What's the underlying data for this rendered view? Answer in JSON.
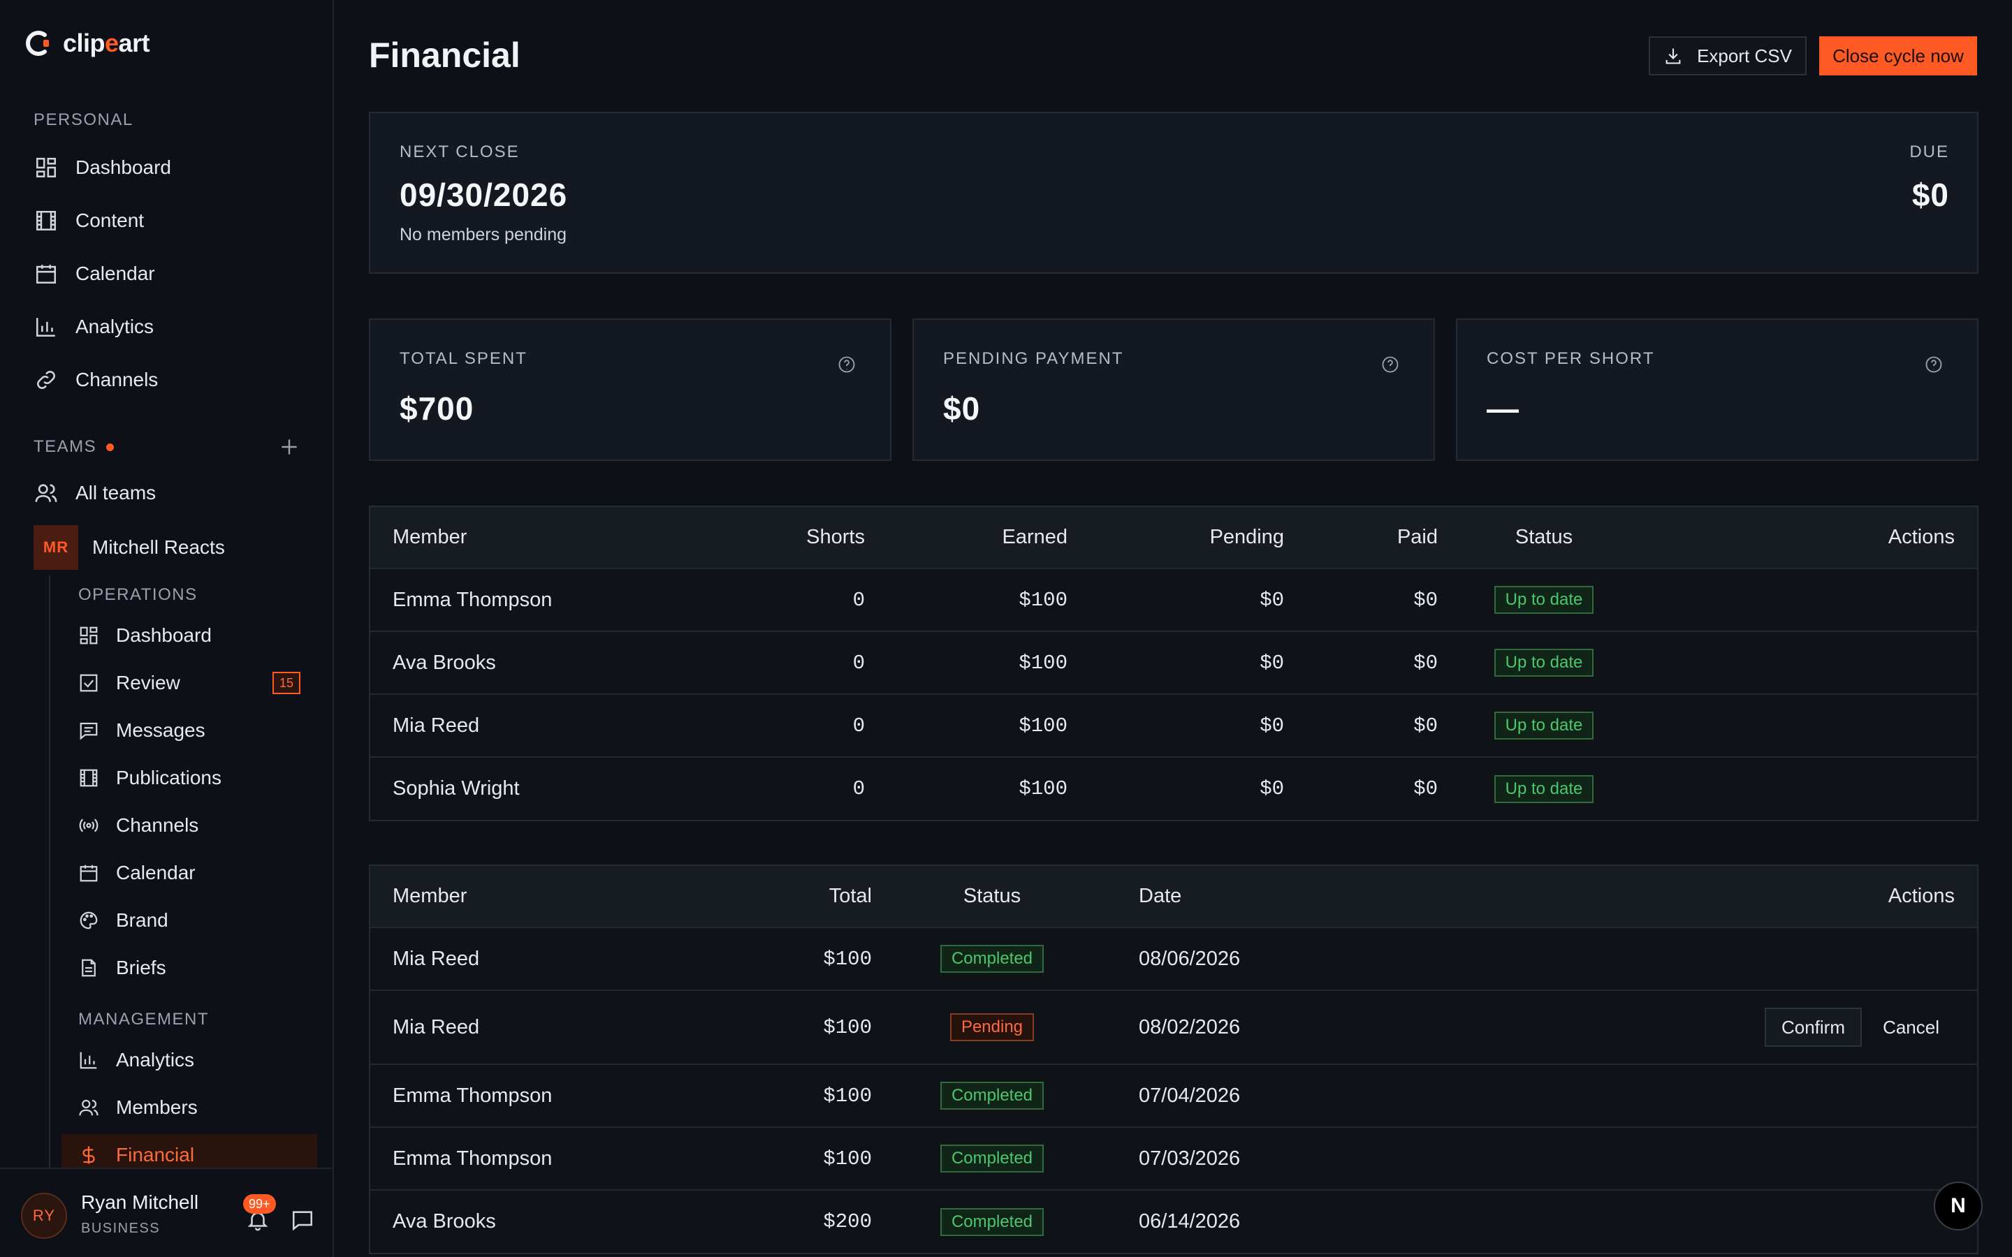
{
  "app": {
    "logo_text_a": "clip",
    "logo_text_b": "e",
    "logo_text_c": "art",
    "brand_color": "#ff5a24"
  },
  "sidebar": {
    "personal_label": "PERSONAL",
    "personal_items": [
      {
        "label": "Dashboard",
        "icon": "dashboard-icon"
      },
      {
        "label": "Content",
        "icon": "film-icon"
      },
      {
        "label": "Calendar",
        "icon": "calendar-icon"
      },
      {
        "label": "Analytics",
        "icon": "bar-chart-icon"
      },
      {
        "label": "Channels",
        "icon": "link-icon"
      }
    ],
    "teams_label": "TEAMS",
    "all_teams": "All teams",
    "team": {
      "initials": "MR",
      "name": "Mitchell Reacts"
    },
    "operations_label": "OPERATIONS",
    "operations_items": [
      {
        "label": "Dashboard",
        "icon": "dashboard-icon"
      },
      {
        "label": "Review",
        "icon": "checkbox-icon",
        "badge": "15"
      },
      {
        "label": "Messages",
        "icon": "message-icon"
      },
      {
        "label": "Publications",
        "icon": "film-icon"
      },
      {
        "label": "Channels",
        "icon": "broadcast-icon"
      },
      {
        "label": "Calendar",
        "icon": "calendar-icon"
      },
      {
        "label": "Brand",
        "icon": "palette-icon"
      },
      {
        "label": "Briefs",
        "icon": "document-icon"
      }
    ],
    "management_label": "MANAGEMENT",
    "management_items": [
      {
        "label": "Analytics",
        "icon": "bar-chart-icon"
      },
      {
        "label": "Members",
        "icon": "users-icon"
      },
      {
        "label": "Financial",
        "icon": "dollar-icon",
        "active": true
      }
    ],
    "user": {
      "initials": "RY",
      "name": "Ryan Mitchell",
      "plan": "BUSINESS",
      "notifications": "99+"
    }
  },
  "header": {
    "title": "Financial",
    "export_label": "Export CSV",
    "close_cycle_label": "Close cycle now"
  },
  "next_close": {
    "label": "NEXT CLOSE",
    "date": "09/30/2026",
    "sub": "No members pending",
    "due_label": "DUE",
    "due_value": "$0"
  },
  "stats": [
    {
      "label": "TOTAL SPENT",
      "value": "$700"
    },
    {
      "label": "PENDING PAYMENT",
      "value": "$0"
    },
    {
      "label": "COST PER SHORT",
      "value": "—"
    }
  ],
  "members_table": {
    "headers": [
      "Member",
      "Shorts",
      "Earned",
      "Pending",
      "Paid",
      "Status",
      "Actions"
    ],
    "rows": [
      {
        "member": "Emma Thompson",
        "shorts": "0",
        "earned": "$100",
        "pending": "$0",
        "paid": "$0",
        "status": "Up to date"
      },
      {
        "member": "Ava Brooks",
        "shorts": "0",
        "earned": "$100",
        "pending": "$0",
        "paid": "$0",
        "status": "Up to date"
      },
      {
        "member": "Mia Reed",
        "shorts": "0",
        "earned": "$100",
        "pending": "$0",
        "paid": "$0",
        "status": "Up to date"
      },
      {
        "member": "Sophia Wright",
        "shorts": "0",
        "earned": "$100",
        "pending": "$0",
        "paid": "$0",
        "status": "Up to date"
      }
    ]
  },
  "payments_table": {
    "headers": [
      "Member",
      "Total",
      "Status",
      "Date",
      "Actions"
    ],
    "rows": [
      {
        "member": "Mia Reed",
        "total": "$100",
        "status": "Completed",
        "date": "08/06/2026"
      },
      {
        "member": "Mia Reed",
        "total": "$100",
        "status": "Pending",
        "date": "08/02/2026",
        "confirm": "Confirm",
        "cancel": "Cancel"
      },
      {
        "member": "Emma Thompson",
        "total": "$100",
        "status": "Completed",
        "date": "07/04/2026"
      },
      {
        "member": "Emma Thompson",
        "total": "$100",
        "status": "Completed",
        "date": "07/03/2026"
      },
      {
        "member": "Ava Brooks",
        "total": "$200",
        "status": "Completed",
        "date": "06/14/2026"
      }
    ]
  },
  "fab_label": "N"
}
